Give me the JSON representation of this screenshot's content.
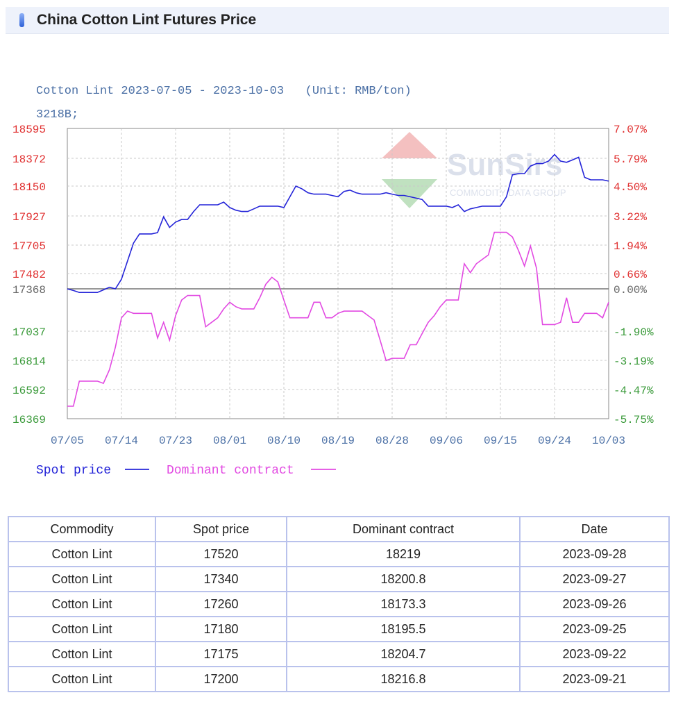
{
  "header": {
    "title": "China Cotton Lint Futures Price"
  },
  "chart_data": {
    "type": "line",
    "title": "Cotton Lint 2023-07-05 - 2023-10-03   (Unit: RMB/ton)",
    "subtitle": "3218B;",
    "watermark": "SunSirs",
    "watermark_sub": "COMMODITY DATA GROUP",
    "x_ticks": [
      "07/05",
      "07/14",
      "07/23",
      "08/01",
      "08/10",
      "08/19",
      "08/28",
      "09/06",
      "09/15",
      "09/24",
      "10/03"
    ],
    "x_range": [
      0,
      90
    ],
    "y_left_ticks": [
      "18595",
      "18372",
      "18150",
      "17927",
      "17705",
      "17482",
      "17368",
      "17037",
      "16814",
      "16592",
      "16369"
    ],
    "y_left_range": [
      16369,
      18595
    ],
    "y_left_baseline": 17368,
    "y_right_ticks": [
      "7.07%",
      "5.79%",
      "4.50%",
      "3.22%",
      "1.94%",
      "0.66%",
      "0.00%",
      "-1.90%",
      "-3.19%",
      "-4.47%",
      "-5.75%"
    ],
    "y_right_range": [
      -5.75,
      7.07
    ],
    "grid": true,
    "legend_position": "bottom-left",
    "series": [
      {
        "name": "Spot price",
        "color": "#2424d8",
        "axis": "left",
        "points": [
          [
            0,
            17368
          ],
          [
            1,
            17355
          ],
          [
            2,
            17340
          ],
          [
            3,
            17340
          ],
          [
            4,
            17340
          ],
          [
            5,
            17340
          ],
          [
            6,
            17360
          ],
          [
            7,
            17380
          ],
          [
            8,
            17368
          ],
          [
            9,
            17440
          ],
          [
            10,
            17580
          ],
          [
            11,
            17720
          ],
          [
            12,
            17790
          ],
          [
            13,
            17790
          ],
          [
            14,
            17790
          ],
          [
            15,
            17800
          ],
          [
            16,
            17920
          ],
          [
            17,
            17840
          ],
          [
            18,
            17880
          ],
          [
            19,
            17900
          ],
          [
            20,
            17900
          ],
          [
            21,
            17960
          ],
          [
            22,
            18010
          ],
          [
            23,
            18010
          ],
          [
            24,
            18010
          ],
          [
            25,
            18010
          ],
          [
            26,
            18030
          ],
          [
            27,
            17990
          ],
          [
            28,
            17970
          ],
          [
            29,
            17960
          ],
          [
            30,
            17960
          ],
          [
            31,
            17980
          ],
          [
            32,
            18000
          ],
          [
            33,
            18000
          ],
          [
            34,
            18000
          ],
          [
            35,
            18000
          ],
          [
            36,
            17990
          ],
          [
            37,
            18070
          ],
          [
            38,
            18150
          ],
          [
            39,
            18130
          ],
          [
            40,
            18100
          ],
          [
            41,
            18090
          ],
          [
            42,
            18090
          ],
          [
            43,
            18090
          ],
          [
            44,
            18080
          ],
          [
            45,
            18070
          ],
          [
            46,
            18110
          ],
          [
            47,
            18120
          ],
          [
            48,
            18100
          ],
          [
            49,
            18090
          ],
          [
            50,
            18090
          ],
          [
            51,
            18090
          ],
          [
            52,
            18090
          ],
          [
            53,
            18100
          ],
          [
            54,
            18090
          ],
          [
            55,
            18080
          ],
          [
            56,
            18080
          ],
          [
            57,
            18070
          ],
          [
            58,
            18060
          ],
          [
            59,
            18050
          ],
          [
            60,
            18000
          ],
          [
            61,
            18000
          ],
          [
            62,
            18000
          ],
          [
            63,
            18000
          ],
          [
            64,
            17990
          ],
          [
            65,
            18010
          ],
          [
            66,
            17960
          ],
          [
            67,
            17980
          ],
          [
            68,
            17990
          ],
          [
            69,
            18000
          ],
          [
            70,
            18000
          ],
          [
            71,
            18000
          ],
          [
            72,
            18000
          ],
          [
            73,
            18070
          ],
          [
            74,
            18240
          ],
          [
            75,
            18250
          ],
          [
            76,
            18250
          ],
          [
            77,
            18310
          ],
          [
            78,
            18330
          ],
          [
            79,
            18330
          ],
          [
            80,
            18350
          ],
          [
            81,
            18400
          ],
          [
            82,
            18350
          ],
          [
            83,
            18340
          ],
          [
            84,
            18360
          ],
          [
            85,
            18380
          ],
          [
            86,
            18220
          ],
          [
            87,
            18200
          ],
          [
            88,
            18200
          ],
          [
            89,
            18200
          ],
          [
            90,
            18190
          ]
        ]
      },
      {
        "name": "Dominant contract",
        "color": "#e24ae2",
        "axis": "right",
        "points": [
          [
            0,
            -5.2
          ],
          [
            1,
            -5.2
          ],
          [
            2,
            -4.1
          ],
          [
            3,
            -4.1
          ],
          [
            4,
            -4.1
          ],
          [
            5,
            -4.1
          ],
          [
            6,
            -4.2
          ],
          [
            7,
            -3.6
          ],
          [
            8,
            -2.6
          ],
          [
            9,
            -1.3
          ],
          [
            10,
            -1.0
          ],
          [
            11,
            -1.1
          ],
          [
            12,
            -1.1
          ],
          [
            13,
            -1.1
          ],
          [
            14,
            -1.1
          ],
          [
            15,
            -2.2
          ],
          [
            16,
            -1.5
          ],
          [
            17,
            -2.3
          ],
          [
            18,
            -1.2
          ],
          [
            19,
            -0.5
          ],
          [
            20,
            -0.3
          ],
          [
            21,
            -0.3
          ],
          [
            22,
            -0.3
          ],
          [
            23,
            -1.7
          ],
          [
            24,
            -1.5
          ],
          [
            25,
            -1.3
          ],
          [
            26,
            -0.9
          ],
          [
            27,
            -0.6
          ],
          [
            28,
            -0.8
          ],
          [
            29,
            -0.9
          ],
          [
            30,
            -0.9
          ],
          [
            31,
            -0.9
          ],
          [
            32,
            -0.4
          ],
          [
            33,
            0.2
          ],
          [
            34,
            0.5
          ],
          [
            35,
            0.3
          ],
          [
            36,
            -0.5
          ],
          [
            37,
            -1.3
          ],
          [
            38,
            -1.3
          ],
          [
            39,
            -1.3
          ],
          [
            40,
            -1.3
          ],
          [
            41,
            -0.6
          ],
          [
            42,
            -0.6
          ],
          [
            43,
            -1.3
          ],
          [
            44,
            -1.3
          ],
          [
            45,
            -1.1
          ],
          [
            46,
            -1.0
          ],
          [
            47,
            -1.0
          ],
          [
            48,
            -1.0
          ],
          [
            49,
            -1.0
          ],
          [
            50,
            -1.2
          ],
          [
            51,
            -1.4
          ],
          [
            52,
            -2.3
          ],
          [
            53,
            -3.2
          ],
          [
            54,
            -3.1
          ],
          [
            55,
            -3.1
          ],
          [
            56,
            -3.1
          ],
          [
            57,
            -2.5
          ],
          [
            58,
            -2.5
          ],
          [
            59,
            -2.0
          ],
          [
            60,
            -1.5
          ],
          [
            61,
            -1.2
          ],
          [
            62,
            -0.8
          ],
          [
            63,
            -0.5
          ],
          [
            64,
            -0.5
          ],
          [
            65,
            -0.5
          ],
          [
            66,
            1.1
          ],
          [
            67,
            0.7
          ],
          [
            68,
            1.1
          ],
          [
            69,
            1.3
          ],
          [
            70,
            1.5
          ],
          [
            71,
            2.5
          ],
          [
            72,
            2.5
          ],
          [
            73,
            2.5
          ],
          [
            74,
            2.3
          ],
          [
            75,
            1.7
          ],
          [
            76,
            1.0
          ],
          [
            77,
            1.9
          ],
          [
            78,
            0.9
          ],
          [
            79,
            -1.6
          ],
          [
            80,
            -1.6
          ],
          [
            81,
            -1.6
          ],
          [
            82,
            -1.5
          ],
          [
            83,
            -0.4
          ],
          [
            84,
            -1.5
          ],
          [
            85,
            -1.5
          ],
          [
            86,
            -1.1
          ],
          [
            87,
            -1.1
          ],
          [
            88,
            -1.1
          ],
          [
            89,
            -1.3
          ],
          [
            90,
            -0.6
          ]
        ]
      }
    ]
  },
  "table": {
    "headers": [
      "Commodity",
      "Spot price",
      "Dominant contract",
      "Date"
    ],
    "rows": [
      [
        "Cotton Lint",
        "17520",
        "18219",
        "2023-09-28"
      ],
      [
        "Cotton Lint",
        "17340",
        "18200.8",
        "2023-09-27"
      ],
      [
        "Cotton Lint",
        "17260",
        "18173.3",
        "2023-09-26"
      ],
      [
        "Cotton Lint",
        "17180",
        "18195.5",
        "2023-09-25"
      ],
      [
        "Cotton Lint",
        "17175",
        "18204.7",
        "2023-09-22"
      ],
      [
        "Cotton Lint",
        "17200",
        "18216.8",
        "2023-09-21"
      ]
    ]
  }
}
